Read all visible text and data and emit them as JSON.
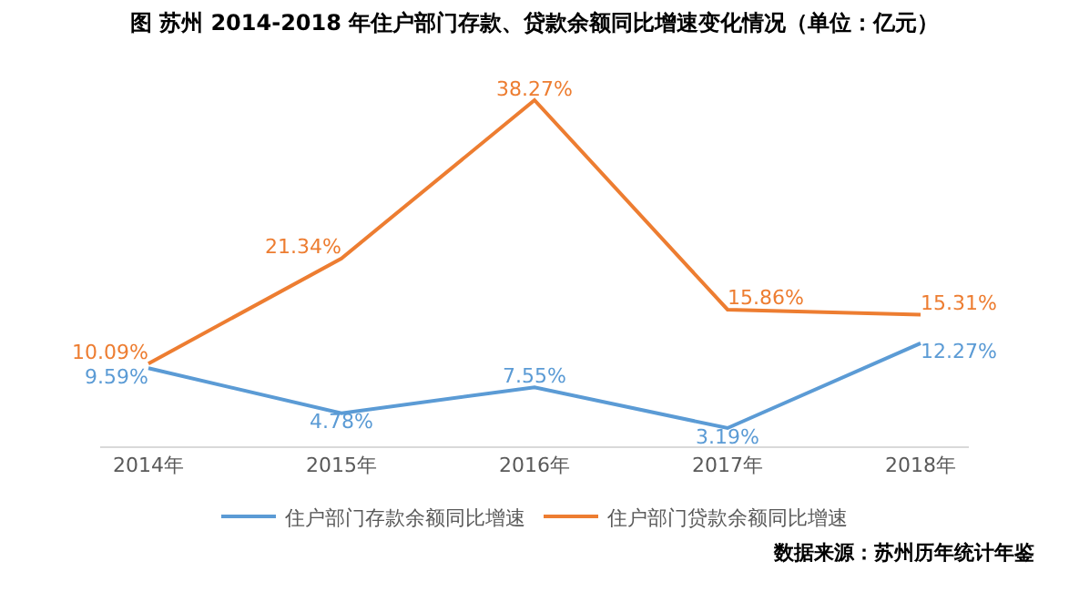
{
  "chart_data": {
    "type": "line",
    "title": "图 苏州 2014-2018 年住户部门存款、贷款余额同比增速变化情况（单位：亿元）",
    "categories": [
      "2014年",
      "2015年",
      "2016年",
      "2017年",
      "2018年"
    ],
    "series": [
      {
        "name": "住户部门存款余额同比增速",
        "color": "#5b9bd5",
        "values": [
          9.59,
          4.78,
          7.55,
          3.19,
          12.27
        ],
        "value_labels": [
          "9.59%",
          "4.78%",
          "7.55%",
          "3.19%",
          "12.27%"
        ]
      },
      {
        "name": "住户部门贷款余额同比增速",
        "color": "#ed7d31",
        "values": [
          10.09,
          21.34,
          38.27,
          15.86,
          15.31
        ],
        "value_labels": [
          "10.09%",
          "21.34%",
          "38.27%",
          "15.86%",
          "15.31%"
        ]
      }
    ],
    "legend": "bottom",
    "marker": "none",
    "line_style": "solid",
    "tick_labels": "x",
    "annotations": [
      "数据来源：苏州历年统计年鉴"
    ]
  }
}
